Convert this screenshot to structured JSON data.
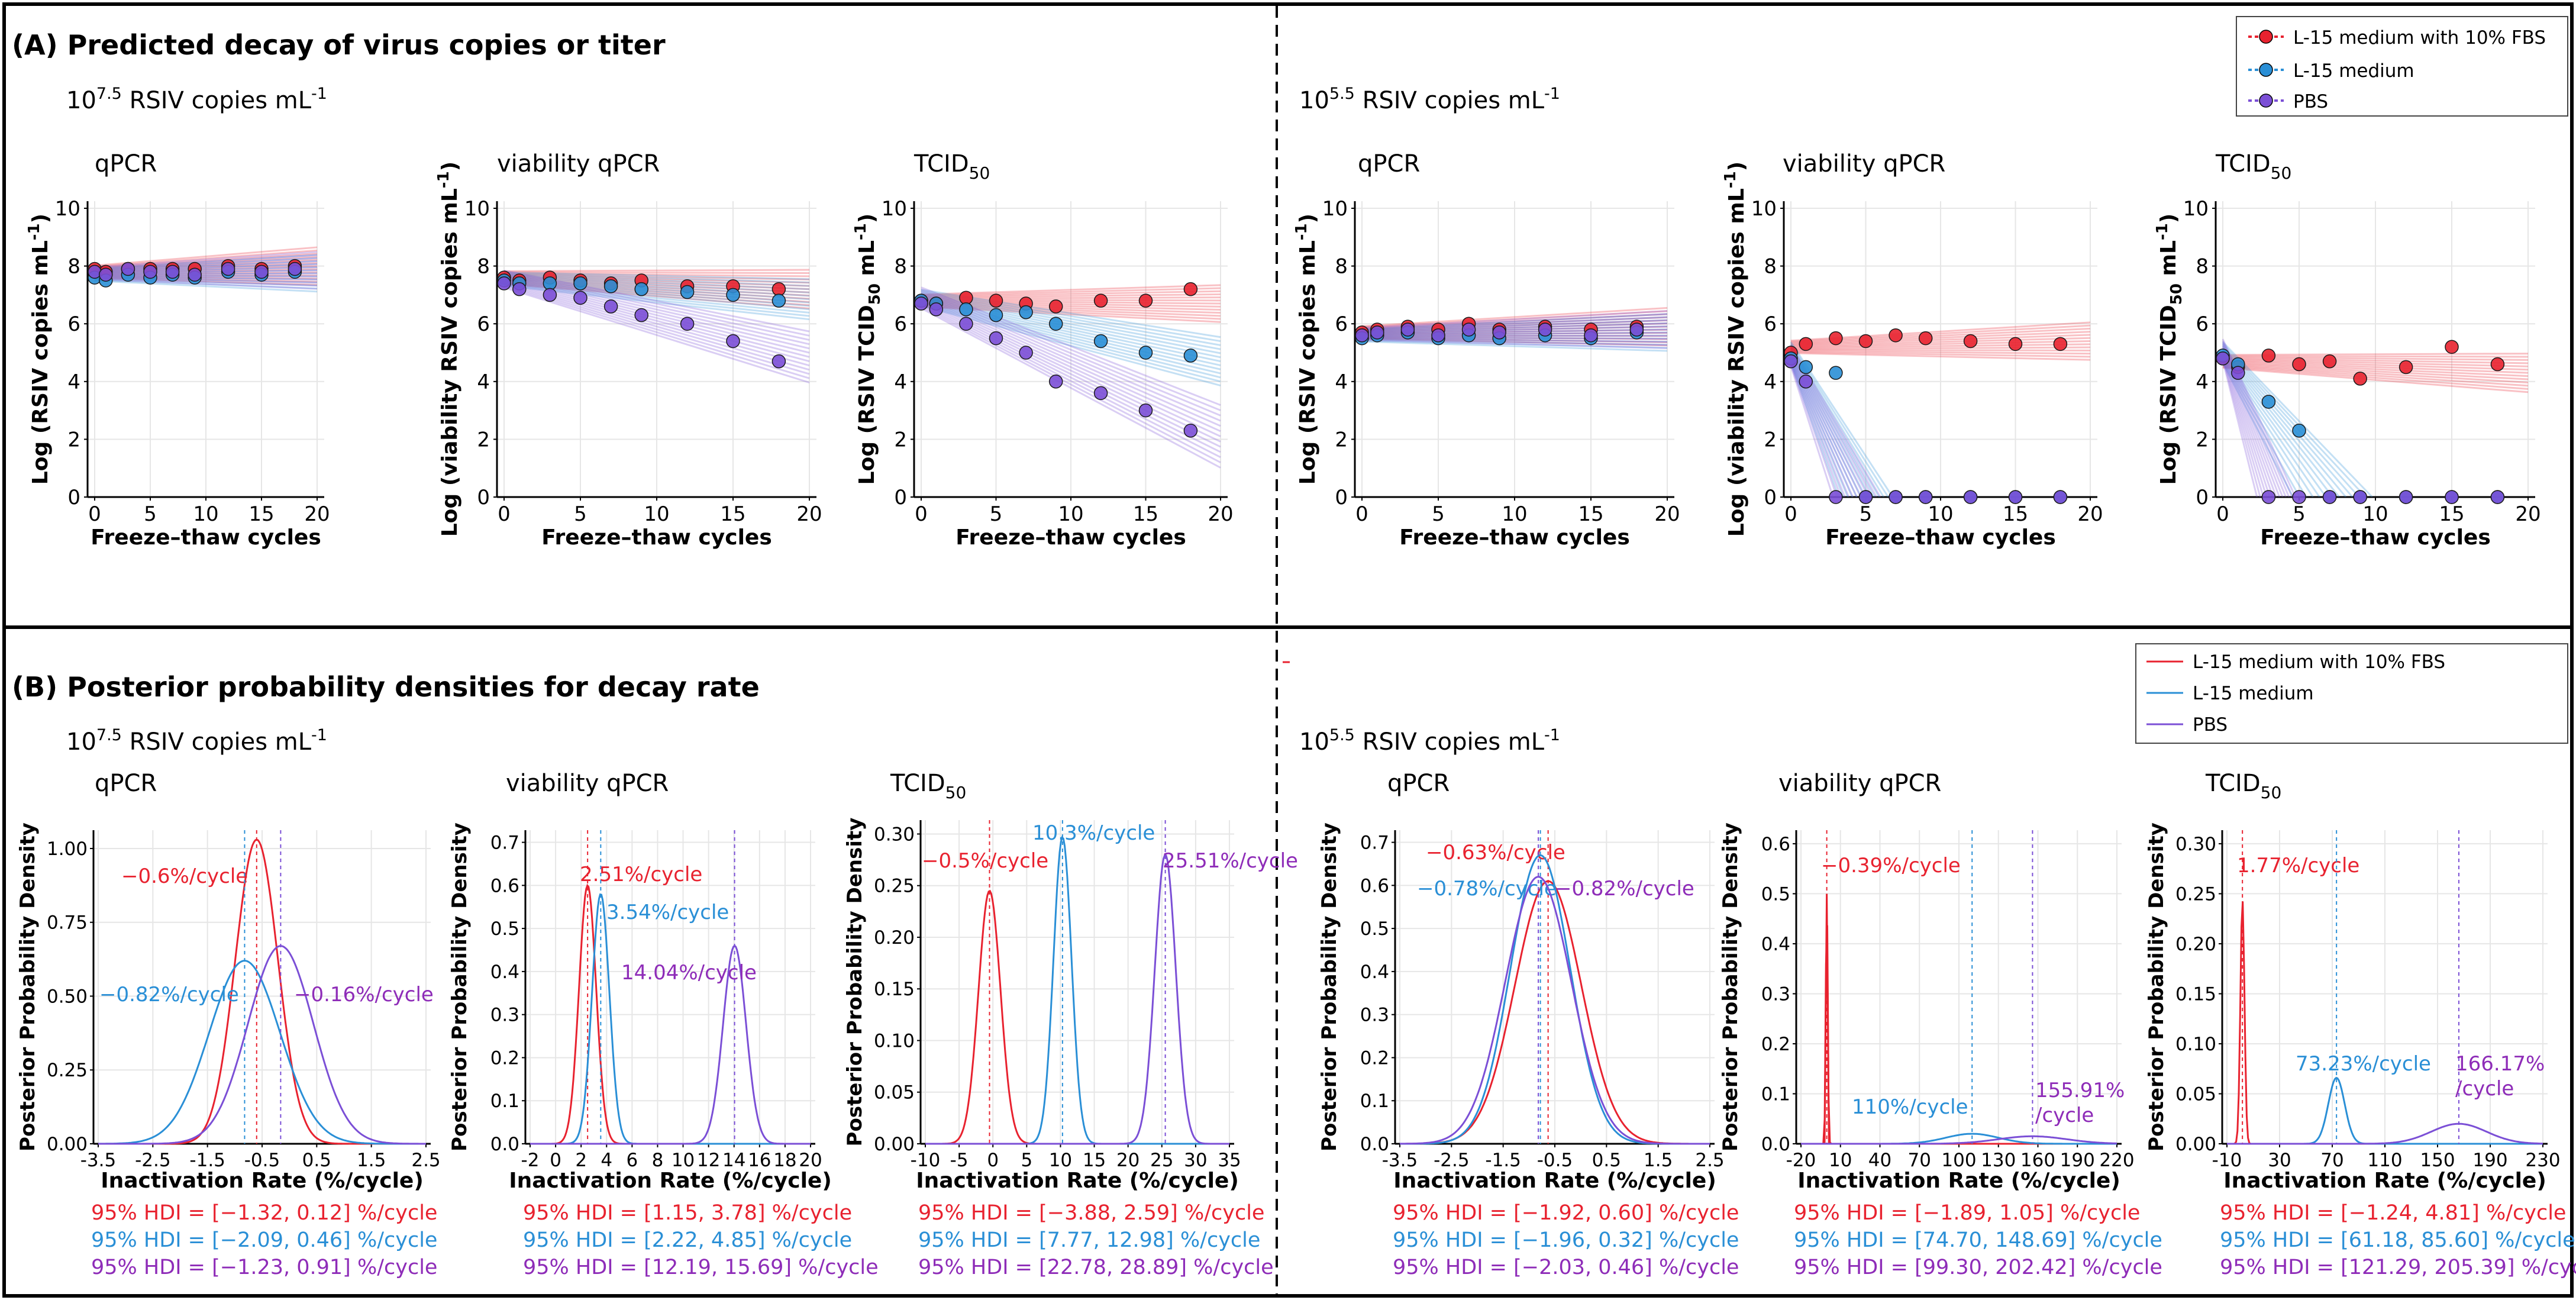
{
  "colors": {
    "red": "#e8222f",
    "blue": "#2a8fd6",
    "purple": "#7b4fd6",
    "label_purple": "#8e2cb8"
  },
  "panel_a": {
    "title": "(A) Predicted decay of virus copies or titer",
    "legend": [
      "L-15 medium with 10% FBS",
      "L-15 medium",
      "PBS"
    ],
    "groups": [
      {
        "label_base": "10",
        "label_exp": "7.5",
        "label_rest": " RSIV copies mL",
        "label_sup": "-1"
      },
      {
        "label_base": "10",
        "label_exp": "5.5",
        "label_rest": " RSIV copies mL",
        "label_sup": "-1"
      }
    ]
  },
  "panel_b": {
    "title": "(B) Posterior probability densities for decay rate",
    "legend": [
      "L-15 medium with 10% FBS",
      "L-15 medium",
      "PBS"
    ],
    "groups": [
      {
        "label_base": "10",
        "label_exp": "7.5",
        "label_rest": " RSIV copies mL",
        "label_sup": "-1"
      },
      {
        "label_base": "10",
        "label_exp": "5.5",
        "label_rest": " RSIV copies mL",
        "label_sup": "-1"
      }
    ]
  },
  "chart_data": [
    {
      "type": "scatter",
      "panel": "A",
      "group": "10^7.5",
      "title": "qPCR",
      "xlabel": "Freeze–thaw cycles",
      "ylabel": "Log (RSIV copies mL-1)",
      "xlim": [
        0,
        20
      ],
      "ylim": [
        0,
        10
      ],
      "xticks": [
        0,
        5,
        10,
        15,
        20
      ],
      "yticks": [
        0,
        2,
        4,
        6,
        8,
        10
      ],
      "x": [
        0,
        1,
        3,
        5,
        7,
        9,
        12,
        15,
        18
      ],
      "series": [
        {
          "name": "L-15 medium with 10% FBS",
          "start": 7.8,
          "end": 8.0,
          "values": [
            7.9,
            7.8,
            7.9,
            7.9,
            7.9,
            7.9,
            8.0,
            7.9,
            8.0
          ]
        },
        {
          "name": "L-15 medium",
          "start": 7.7,
          "end": 7.75,
          "values": [
            7.6,
            7.5,
            7.7,
            7.6,
            7.7,
            7.6,
            7.8,
            7.7,
            7.8
          ]
        },
        {
          "name": "PBS",
          "start": 7.75,
          "end": 7.85,
          "values": [
            7.8,
            7.7,
            7.9,
            7.8,
            7.8,
            7.7,
            7.9,
            7.8,
            7.9
          ]
        }
      ]
    },
    {
      "type": "scatter",
      "panel": "A",
      "group": "10^7.5",
      "title": "viability qPCR",
      "xlabel": "Freeze–thaw cycles",
      "ylabel": "Log (viability RSIV copies mL-1)",
      "xlim": [
        0,
        20
      ],
      "ylim": [
        0,
        10
      ],
      "xticks": [
        0,
        5,
        10,
        15,
        20
      ],
      "yticks": [
        0,
        2,
        4,
        6,
        8,
        10
      ],
      "x": [
        0,
        1,
        3,
        5,
        7,
        9,
        12,
        15,
        18
      ],
      "series": [
        {
          "name": "L-15 medium with 10% FBS",
          "start": 7.6,
          "end": 7.2,
          "values": [
            7.6,
            7.5,
            7.6,
            7.5,
            7.4,
            7.5,
            7.3,
            7.3,
            7.2
          ]
        },
        {
          "name": "L-15 medium",
          "start": 7.55,
          "end": 6.85,
          "values": [
            7.5,
            7.4,
            7.4,
            7.4,
            7.3,
            7.2,
            7.1,
            7.0,
            6.8
          ]
        },
        {
          "name": "PBS",
          "start": 7.55,
          "end": 4.85,
          "values": [
            7.4,
            7.2,
            7.0,
            6.9,
            6.6,
            6.3,
            6.0,
            5.4,
            4.7
          ]
        }
      ]
    },
    {
      "type": "scatter",
      "panel": "A",
      "group": "10^7.5",
      "title": "TCID",
      "title_sub": "50",
      "xlabel": "Freeze–thaw cycles",
      "ylabel": "Log (RSIV TCID50 mL-1)",
      "xlim": [
        0,
        20
      ],
      "ylim": [
        0,
        10
      ],
      "xticks": [
        0,
        5,
        10,
        15,
        20
      ],
      "yticks": [
        0,
        2,
        4,
        6,
        8,
        10
      ],
      "x": [
        0,
        1,
        3,
        5,
        7,
        9,
        12,
        15,
        18
      ],
      "series": [
        {
          "name": "L-15 medium with 10% FBS",
          "start": 6.8,
          "end": 6.7,
          "values": [
            6.8,
            6.7,
            6.9,
            6.8,
            6.7,
            6.6,
            6.8,
            6.8,
            7.2
          ]
        },
        {
          "name": "L-15 medium",
          "start": 6.9,
          "end": 4.7,
          "values": [
            6.8,
            6.7,
            6.5,
            6.3,
            6.4,
            6.0,
            5.4,
            5.0,
            4.9
          ]
        },
        {
          "name": "PBS",
          "start": 6.9,
          "end": 2.1,
          "values": [
            6.7,
            6.5,
            6.0,
            5.5,
            5.0,
            4.0,
            3.6,
            3.0,
            2.3
          ]
        }
      ]
    },
    {
      "type": "scatter",
      "panel": "A",
      "group": "10^5.5",
      "title": "qPCR",
      "xlabel": "Freeze–thaw cycles",
      "ylabel": "Log (RSIV copies mL-1)",
      "xlim": [
        0,
        20
      ],
      "ylim": [
        0,
        10
      ],
      "xticks": [
        0,
        5,
        10,
        15,
        20
      ],
      "yticks": [
        0,
        2,
        4,
        6,
        8,
        10
      ],
      "x": [
        0,
        1,
        3,
        5,
        7,
        9,
        12,
        15,
        18
      ],
      "series": [
        {
          "name": "L-15 medium with 10% FBS",
          "start": 5.7,
          "end": 5.9,
          "values": [
            5.7,
            5.8,
            5.9,
            5.8,
            6.0,
            5.8,
            5.9,
            5.8,
            5.9
          ]
        },
        {
          "name": "L-15 medium",
          "start": 5.6,
          "end": 5.7,
          "values": [
            5.5,
            5.6,
            5.7,
            5.5,
            5.6,
            5.5,
            5.6,
            5.5,
            5.7
          ]
        },
        {
          "name": "PBS",
          "start": 5.65,
          "end": 5.8,
          "values": [
            5.6,
            5.7,
            5.8,
            5.6,
            5.8,
            5.7,
            5.8,
            5.6,
            5.8
          ]
        }
      ]
    },
    {
      "type": "scatter",
      "panel": "A",
      "group": "10^5.5",
      "title": "viability qPCR",
      "xlabel": "Freeze–thaw cycles",
      "ylabel": "Log (viability RSIV copies mL-1)",
      "xlim": [
        0,
        20
      ],
      "ylim": [
        0,
        10
      ],
      "xticks": [
        0,
        5,
        10,
        15,
        20
      ],
      "yticks": [
        0,
        2,
        4,
        6,
        8,
        10
      ],
      "x": [
        0,
        1,
        3,
        5,
        7,
        9,
        12,
        15,
        18
      ],
      "series": [
        {
          "name": "L-15 medium with 10% FBS",
          "start": 5.2,
          "end": 5.4,
          "values": [
            5.0,
            5.3,
            5.5,
            5.4,
            5.6,
            5.5,
            5.4,
            5.3,
            5.3
          ]
        },
        {
          "name": "L-15 medium",
          "start": 5.0,
          "end": 0,
          "zero_at": 5.0,
          "values": [
            4.8,
            4.5,
            4.3,
            0,
            0,
            0,
            0,
            0,
            0
          ]
        },
        {
          "name": "PBS",
          "start": 4.9,
          "end": 0,
          "zero_at": 4.4,
          "values": [
            4.7,
            4.0,
            0,
            0,
            0,
            0,
            0,
            0,
            0
          ]
        }
      ]
    },
    {
      "type": "scatter",
      "panel": "A",
      "group": "10^5.5",
      "title": "TCID",
      "title_sub": "50",
      "xlabel": "Freeze–thaw cycles",
      "ylabel": "Log (RSIV TCID50 mL-1)",
      "xlim": [
        0,
        20
      ],
      "ylim": [
        0,
        10
      ],
      "xticks": [
        0,
        5,
        10,
        15,
        20
      ],
      "yticks": [
        0,
        2,
        4,
        6,
        8,
        10
      ],
      "x": [
        0,
        1,
        3,
        5,
        7,
        9,
        12,
        15,
        18
      ],
      "series": [
        {
          "name": "L-15 medium with 10% FBS",
          "start": 4.7,
          "end": 4.3,
          "values": [
            4.8,
            4.5,
            4.9,
            4.6,
            4.7,
            4.1,
            4.5,
            5.2,
            4.6
          ]
        },
        {
          "name": "L-15 medium",
          "start": 5.0,
          "end": 0,
          "zero_at": 7.2,
          "values": [
            4.9,
            4.6,
            3.3,
            2.3,
            0,
            0,
            0,
            0,
            0
          ]
        },
        {
          "name": "PBS",
          "start": 5.1,
          "end": 0,
          "zero_at": 3.5,
          "values": [
            4.8,
            4.3,
            0,
            0,
            0,
            0,
            0,
            0,
            0
          ]
        }
      ]
    },
    {
      "type": "line",
      "panel": "B",
      "group": "10^7.5",
      "title": "qPCR",
      "xlabel": "Inactivation Rate (%/cycle)",
      "ylabel": "Posterior Probability Density",
      "xlim": [
        -3.5,
        2.5
      ],
      "ylim": [
        0,
        1.05
      ],
      "xticks": [
        -3.5,
        -2.5,
        -1.5,
        -0.5,
        0.5,
        1.5,
        2.5
      ],
      "xticks_label": [
        "-3.5",
        "-2.5",
        "-1.5",
        "-0.5",
        "0.5",
        "1.5",
        "2.5"
      ],
      "yticks": [
        0,
        0.25,
        0.5,
        0.75,
        1.0
      ],
      "yticks_label": [
        "0.00",
        "0.25",
        "0.50",
        "0.75",
        "1.00"
      ],
      "series": [
        {
          "name": "L-15 medium with 10% FBS",
          "mean": -0.6,
          "sd": 0.39,
          "peak": 1.03,
          "label": "−0.6%/cycle",
          "hdi": "95% HDI = [−1.32, 0.12] %/cycle"
        },
        {
          "name": "L-15 medium",
          "mean": -0.82,
          "sd": 0.65,
          "peak": 0.62,
          "label": "−0.82%/cycle",
          "hdi": "95% HDI = [−2.09, 0.46] %/cycle"
        },
        {
          "name": "PBS",
          "mean": -0.16,
          "sd": 0.6,
          "peak": 0.67,
          "label": "−0.16%/cycle",
          "hdi": "95% HDI = [−1.23, 0.91] %/cycle"
        }
      ]
    },
    {
      "type": "line",
      "panel": "B",
      "group": "10^7.5",
      "title": "viability qPCR",
      "xlabel": "Inactivation Rate (%/cycle)",
      "ylabel": "Posterior Probability Density",
      "xlim": [
        -2,
        20
      ],
      "ylim": [
        0,
        0.72
      ],
      "xticks": [
        -2,
        0,
        2,
        4,
        6,
        8,
        10,
        12,
        14,
        16,
        18,
        20
      ],
      "xticks_label": [
        "-2",
        "0",
        "2",
        "4",
        "6",
        "8",
        "10",
        "12",
        "14",
        "16",
        "18",
        "20"
      ],
      "yticks": [
        0,
        0.1,
        0.2,
        0.3,
        0.4,
        0.5,
        0.6,
        0.7
      ],
      "yticks_label": [
        "0.0",
        "0.1",
        "0.2",
        "0.3",
        "0.4",
        "0.5",
        "0.6",
        "0.7"
      ],
      "series": [
        {
          "name": "L-15 medium with 10% FBS",
          "mean": 2.51,
          "sd": 0.67,
          "peak": 0.6,
          "label": "2.51%/cycle",
          "hdi": "95% HDI = [1.15, 3.78] %/cycle"
        },
        {
          "name": "L-15 medium",
          "mean": 3.54,
          "sd": 0.68,
          "peak": 0.58,
          "label": "3.54%/cycle",
          "hdi": "95% HDI = [2.22, 4.85] %/cycle"
        },
        {
          "name": "PBS",
          "mean": 14.04,
          "sd": 0.9,
          "peak": 0.46,
          "label": "14.04%/cycle",
          "hdi": "95% HDI = [12.19, 15.69] %/cycle"
        }
      ]
    },
    {
      "type": "line",
      "panel": "B",
      "group": "10^7.5",
      "title": "TCID",
      "title_sub": "50",
      "xlabel": "Inactivation Rate (%/cycle)",
      "ylabel": "Posterior Probability Density",
      "xlim": [
        -10,
        35
      ],
      "ylim": [
        0,
        0.31
      ],
      "xticks": [
        -10,
        -5,
        0,
        5,
        10,
        15,
        20,
        25,
        30,
        35
      ],
      "xticks_label": [
        "-10",
        "-5",
        "0",
        "5",
        "10",
        "15",
        "20",
        "25",
        "30",
        "35"
      ],
      "yticks": [
        0,
        0.05,
        0.1,
        0.15,
        0.2,
        0.25,
        0.3
      ],
      "yticks_label": [
        "0.00",
        "0.05",
        "0.10",
        "0.15",
        "0.20",
        "0.25",
        "0.30"
      ],
      "series": [
        {
          "name": "L-15 medium with 10% FBS",
          "mean": -0.5,
          "sd": 1.63,
          "peak": 0.245,
          "label": "−0.5%/cycle",
          "hdi": "95% HDI = [−3.88, 2.59] %/cycle"
        },
        {
          "name": "L-15 medium",
          "mean": 10.3,
          "sd": 1.33,
          "peak": 0.297,
          "label": "10.3%/cycle",
          "hdi": "95% HDI = [7.77, 12.98] %/cycle"
        },
        {
          "name": "PBS",
          "mean": 25.51,
          "sd": 1.55,
          "peak": 0.28,
          "label": "25.51%/cycle",
          "hdi": "95% HDI = [22.78, 28.89] %/cycle"
        }
      ]
    },
    {
      "type": "line",
      "panel": "B",
      "group": "10^5.5",
      "title": "qPCR",
      "xlabel": "Inactivation Rate (%/cycle)",
      "ylabel": "Posterior Probability Density",
      "xlim": [
        -3.5,
        2.5
      ],
      "ylim": [
        0,
        0.72
      ],
      "xticks": [
        -3.5,
        -2.5,
        -1.5,
        -0.5,
        0.5,
        1.5,
        2.5
      ],
      "xticks_label": [
        "-3.5",
        "-2.5",
        "-1.5",
        "-0.5",
        "0.5",
        "1.5",
        "2.5"
      ],
      "yticks": [
        0,
        0.1,
        0.2,
        0.3,
        0.4,
        0.5,
        0.6,
        0.7
      ],
      "yticks_label": [
        "0.0",
        "0.1",
        "0.2",
        "0.3",
        "0.4",
        "0.5",
        "0.6",
        "0.7"
      ],
      "series": [
        {
          "name": "L-15 medium with 10% FBS",
          "mean": -0.63,
          "sd": 0.64,
          "peak": 0.61,
          "label": "−0.63%/cycle",
          "hdi": "95% HDI = [−1.92, 0.60] %/cycle"
        },
        {
          "name": "L-15 medium",
          "mean": -0.78,
          "sd": 0.58,
          "peak": 0.67,
          "label": "−0.78%/cycle",
          "hdi": "95% HDI = [−1.96, 0.32] %/cycle"
        },
        {
          "name": "PBS",
          "mean": -0.82,
          "sd": 0.64,
          "peak": 0.62,
          "label": "−0.82%/cycle",
          "hdi": "95% HDI = [−2.03, 0.46] %/cycle"
        }
      ]
    },
    {
      "type": "line",
      "panel": "B",
      "group": "10^5.5",
      "title": "viability qPCR",
      "xlabel": "Inactivation Rate (%/cycle)",
      "ylabel": "Posterior Probability Density",
      "xlim": [
        -20,
        220
      ],
      "ylim": [
        0,
        0.62
      ],
      "xticks": [
        -20,
        10,
        40,
        70,
        100,
        130,
        160,
        190,
        220
      ],
      "xticks_label": [
        "-20",
        "10",
        "40",
        "70",
        "100",
        "130",
        "160",
        "190",
        "220"
      ],
      "yticks": [
        0,
        0.1,
        0.2,
        0.3,
        0.4,
        0.5,
        0.6
      ],
      "yticks_label": [
        "0.0",
        "0.1",
        "0.2",
        "0.3",
        "0.4",
        "0.5",
        "0.6"
      ],
      "series": [
        {
          "name": "L-15 medium with 10% FBS",
          "mean": -0.39,
          "sd": 0.75,
          "peak": 0.5,
          "label": "−0.39%/cycle",
          "hdi": "95% HDI = [−1.89, 1.05] %/cycle"
        },
        {
          "name": "L-15 medium",
          "mean": 110,
          "sd": 20,
          "peak": 0.02,
          "label": "110%/cycle",
          "hdi": "95% HDI = [74.70, 148.69] %/cycle"
        },
        {
          "name": "PBS",
          "mean": 155.91,
          "sd": 26,
          "peak": 0.015,
          "label": "155.91% /cycle",
          "hdi": "95% HDI = [99.30, 202.42] %/cycle"
        }
      ]
    },
    {
      "type": "line",
      "panel": "B",
      "group": "10^5.5",
      "title": "TCID",
      "title_sub": "50",
      "xlabel": "Inactivation Rate (%/cycle)",
      "ylabel": "Posterior Probability Density",
      "xlim": [
        -10,
        230
      ],
      "ylim": [
        0,
        0.31
      ],
      "xticks": [
        -10,
        30,
        70,
        110,
        150,
        190,
        230
      ],
      "xticks_label": [
        "-10",
        "30",
        "70",
        "110",
        "150",
        "190",
        "230"
      ],
      "yticks": [
        0,
        0.05,
        0.1,
        0.15,
        0.2,
        0.25,
        0.3
      ],
      "yticks_label": [
        "0.00",
        "0.05",
        "0.10",
        "0.15",
        "0.20",
        "0.25",
        "0.30"
      ],
      "series": [
        {
          "name": "L-15 medium with 10% FBS",
          "mean": 1.77,
          "sd": 1.55,
          "peak": 0.245,
          "label": "1.77%/cycle",
          "hdi": "95% HDI = [−1.24, 4.81] %/cycle"
        },
        {
          "name": "L-15 medium",
          "mean": 73.23,
          "sd": 6.2,
          "peak": 0.066,
          "label": "73.23%/cycle",
          "hdi": "95% HDI = [61.18, 85.60] %/cycle"
        },
        {
          "name": "PBS",
          "mean": 166.17,
          "sd": 21,
          "peak": 0.02,
          "label": "166.17% /cycle",
          "hdi": "95% HDI = [121.29, 205.39] %/cycle"
        }
      ]
    }
  ]
}
